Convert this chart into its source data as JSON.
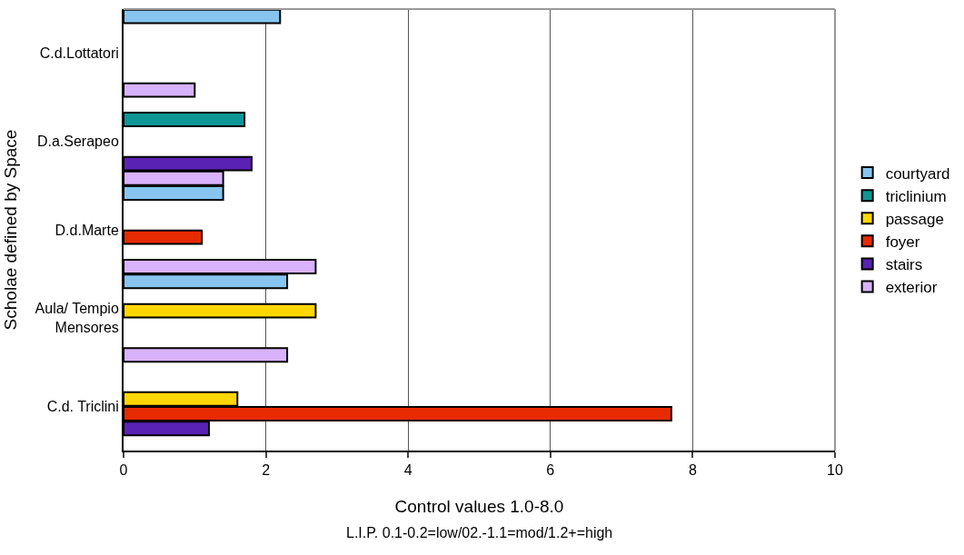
{
  "chart_data": {
    "type": "bar",
    "orientation": "horizontal",
    "categories": [
      "C.d.Lottatori",
      "D.a.Serapeo",
      "D.d.Marte",
      "Aula/ Tempio Mensores",
      "C.d. Triclini"
    ],
    "series": [
      {
        "name": "courtyard",
        "color": "#87c5ee",
        "values": [
          2.2,
          null,
          1.4,
          2.3,
          null
        ]
      },
      {
        "name": "triclinium",
        "color": "#0f9696",
        "values": [
          null,
          1.7,
          null,
          null,
          null
        ]
      },
      {
        "name": "passage",
        "color": "#ffd700",
        "values": [
          null,
          null,
          null,
          2.7,
          1.6
        ]
      },
      {
        "name": "foyer",
        "color": "#e82a00",
        "values": [
          null,
          null,
          1.1,
          null,
          7.7
        ]
      },
      {
        "name": "stairs",
        "color": "#5a22b4",
        "values": [
          null,
          1.8,
          null,
          null,
          1.2
        ]
      },
      {
        "name": "exterior",
        "color": "#d8b2fc",
        "values": [
          1.0,
          1.4,
          2.7,
          2.3,
          null
        ]
      }
    ],
    "xlim": [
      0,
      10
    ],
    "xticks": [
      0,
      2,
      4,
      6,
      8,
      10
    ],
    "xlabel": "Control values 1.0-8.0",
    "ylabel": "Scholae defined by Space",
    "annotations": [
      "L.I.P. 0.1-0.2=low/02.-1.1=mod/1.2+=high"
    ],
    "grid": "x",
    "legend": "right"
  }
}
